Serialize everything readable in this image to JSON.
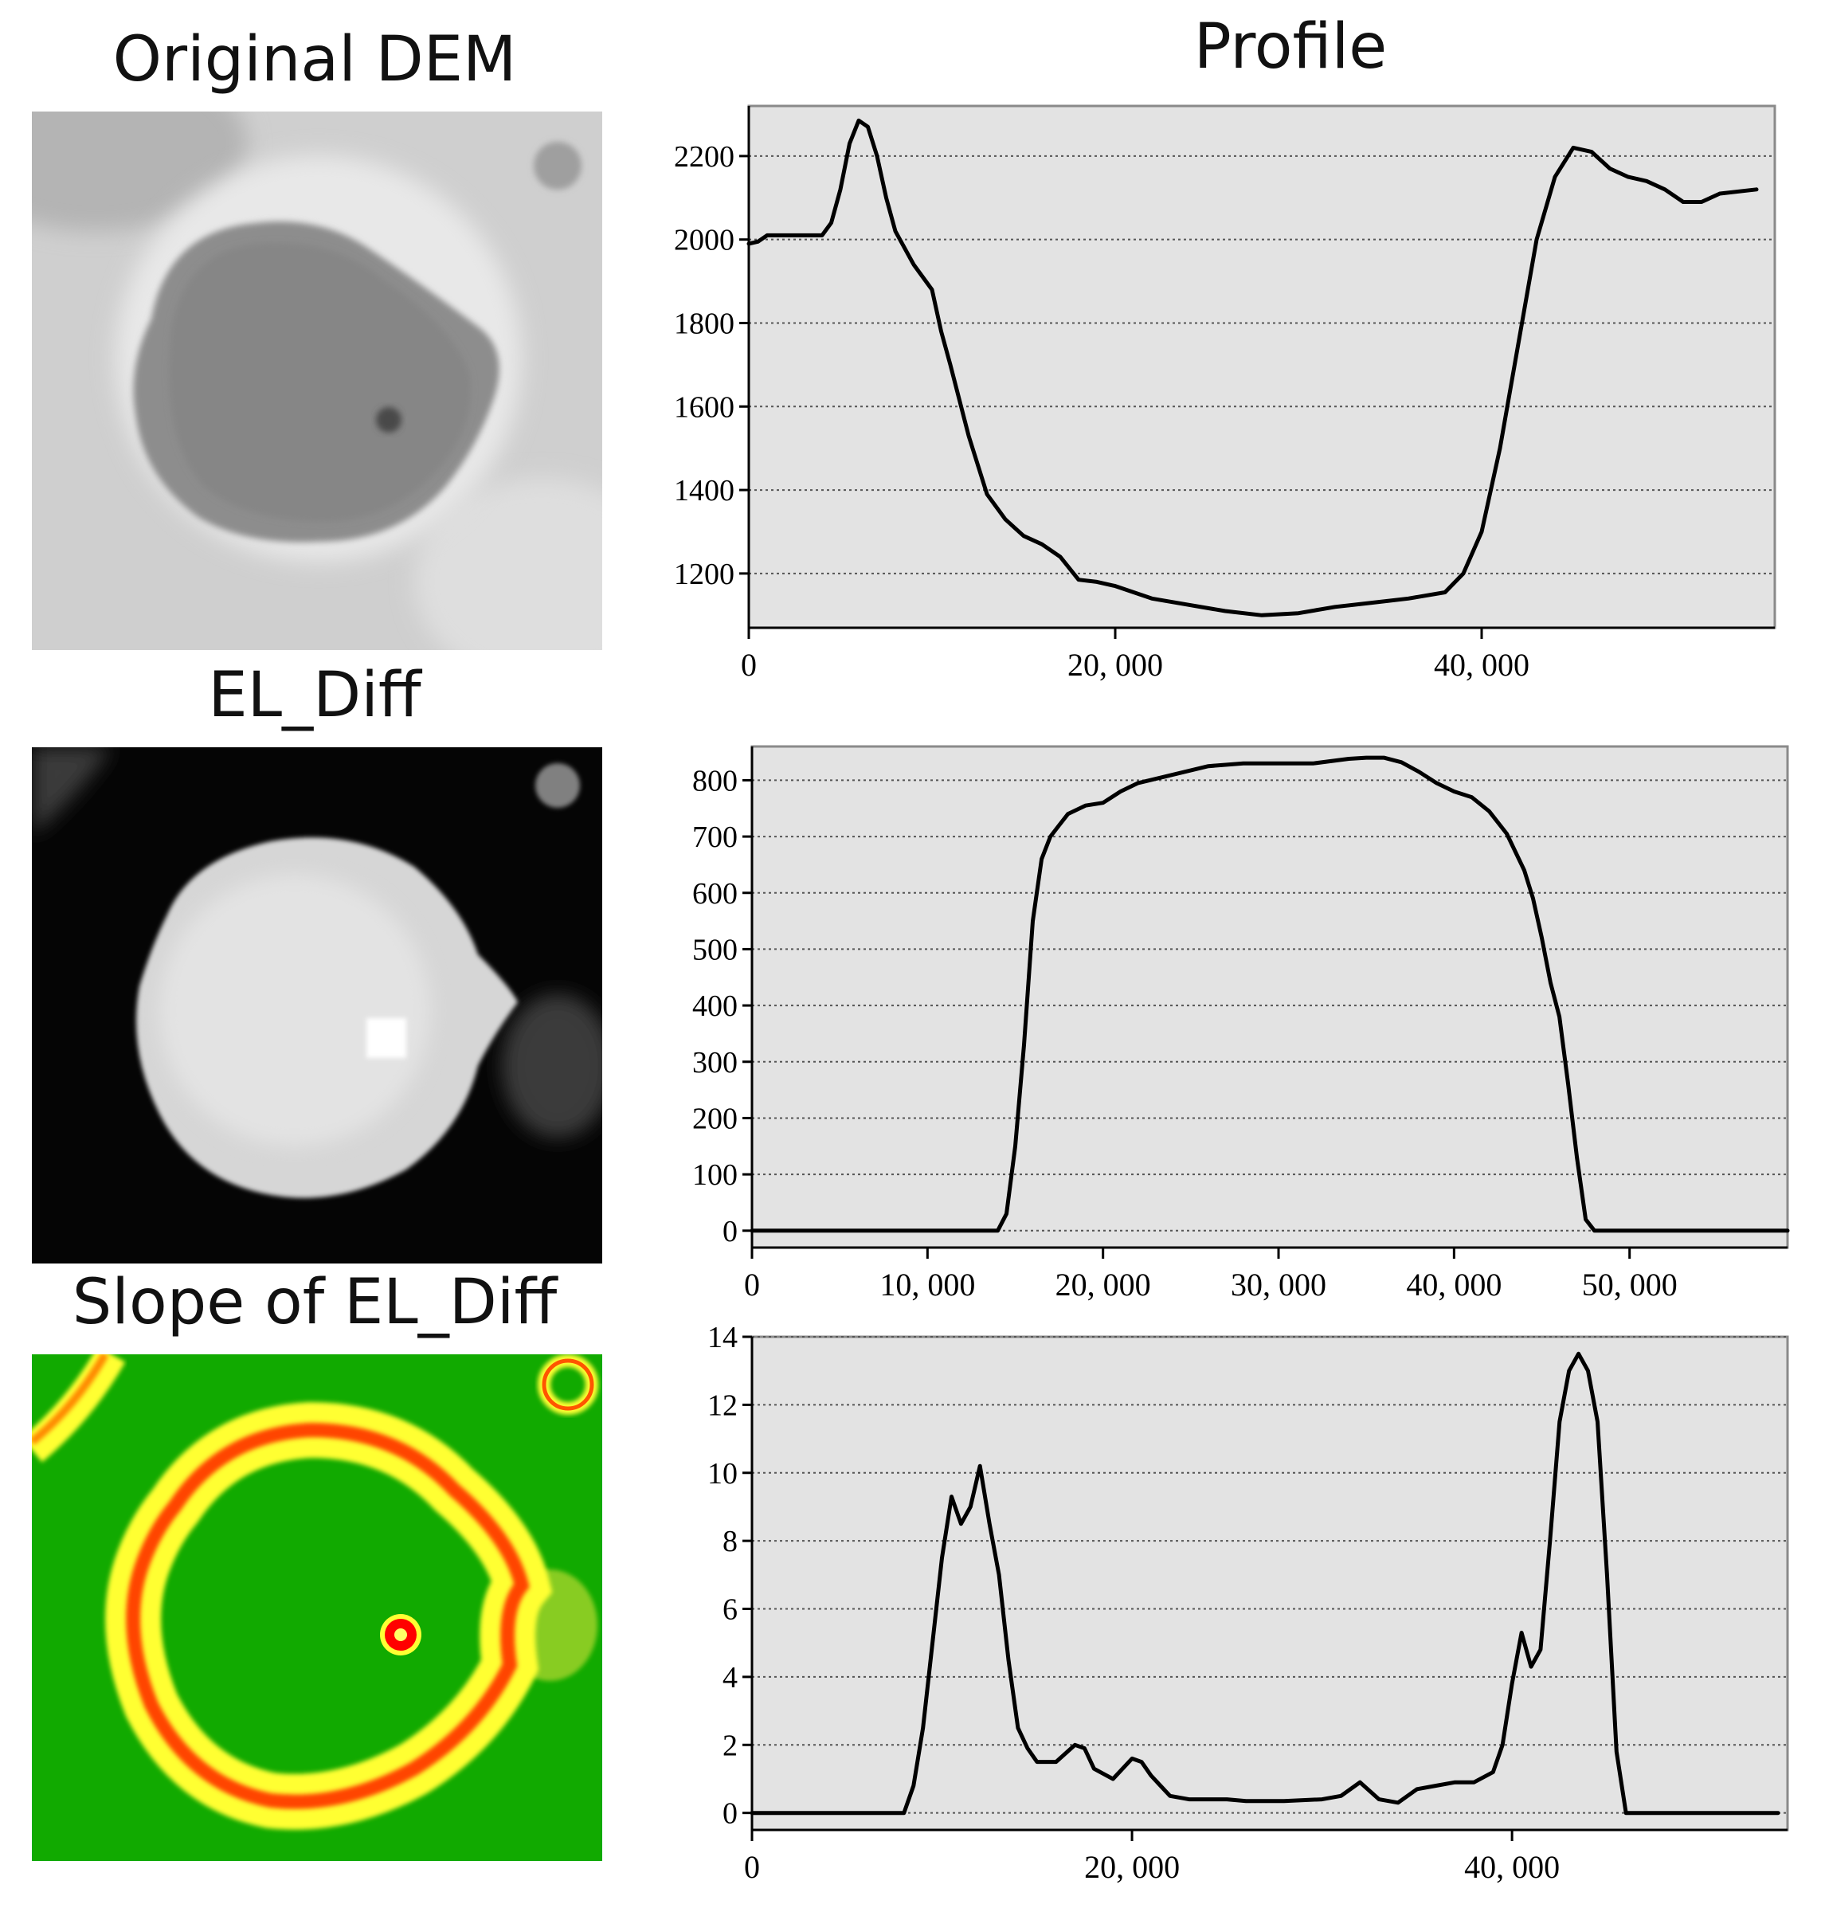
{
  "titles": {
    "dem": "Original DEM",
    "diff": "EL_Diff",
    "slope": "Slope of EL_Diff",
    "profile": "Profile"
  },
  "colors": {
    "plot_bg": "#e3e3e3",
    "line": "#000000",
    "grid": "#555555",
    "slope_low": "#11aa00",
    "slope_mid": "#ffff33",
    "slope_high": "#ff0000"
  },
  "chart_data": [
    {
      "type": "line",
      "title": "",
      "xlabel": "",
      "ylabel": "",
      "xlim": [
        0,
        56000
      ],
      "ylim": [
        1070,
        2320
      ],
      "xticks": [
        0,
        20000,
        40000
      ],
      "xtick_labels": [
        "0",
        "20, 000",
        "40, 000"
      ],
      "yticks": [
        1200,
        1400,
        1600,
        1800,
        2000,
        2200
      ],
      "yticks_labels": [
        "1200",
        "1400",
        "1600",
        "1800",
        "2000",
        "2200"
      ],
      "grid": "horizontal-dotted",
      "series": [
        {
          "x": [
            0,
            500,
            1000,
            4000,
            4500,
            5000,
            5500,
            6000,
            6500,
            7000,
            7500,
            8000,
            9000,
            10000,
            10500,
            11000,
            12000,
            13000,
            14000,
            15000,
            16000,
            17000,
            18000,
            19000,
            20000,
            22000,
            24000,
            26000,
            28000,
            30000,
            32000,
            34000,
            36000,
            38000,
            39000,
            40000,
            41000,
            42000,
            43000,
            44000,
            45000,
            46000,
            47000,
            48000,
            49000,
            50000,
            51000,
            52000,
            53000,
            55000
          ],
          "y": [
            1990,
            1995,
            2010,
            2010,
            2040,
            2120,
            2230,
            2285,
            2270,
            2200,
            2100,
            2020,
            1940,
            1880,
            1780,
            1700,
            1530,
            1390,
            1330,
            1290,
            1270,
            1240,
            1185,
            1180,
            1170,
            1140,
            1125,
            1110,
            1100,
            1105,
            1120,
            1130,
            1140,
            1155,
            1200,
            1300,
            1500,
            1750,
            2000,
            2150,
            2220,
            2210,
            2170,
            2150,
            2140,
            2120,
            2090,
            2090,
            2110,
            2120
          ]
        }
      ]
    },
    {
      "type": "line",
      "title": "",
      "xlabel": "",
      "ylabel": "",
      "xlim": [
        0,
        59000
      ],
      "ylim": [
        -30,
        860
      ],
      "xticks": [
        0,
        10000,
        20000,
        30000,
        40000,
        50000
      ],
      "xtick_labels": [
        "0",
        "10, 000",
        "20, 000",
        "30, 000",
        "40, 000",
        "50, 000"
      ],
      "yticks": [
        0,
        100,
        200,
        300,
        400,
        500,
        600,
        700,
        800
      ],
      "yticks_labels": [
        "0",
        "100",
        "200",
        "300",
        "400",
        "500",
        "600",
        "700",
        "800"
      ],
      "grid": "horizontal-dotted",
      "series": [
        {
          "x": [
            0,
            14000,
            14500,
            15000,
            15500,
            16000,
            16500,
            17000,
            17500,
            18000,
            19000,
            20000,
            21000,
            22000,
            24000,
            26000,
            28000,
            30000,
            32000,
            34000,
            35000,
            36000,
            37000,
            38000,
            39000,
            40000,
            41000,
            42000,
            43000,
            44000,
            44500,
            45000,
            45500,
            46000,
            46500,
            47000,
            47500,
            48000,
            48500,
            50000,
            52000,
            59000
          ],
          "y": [
            0,
            0,
            30,
            150,
            330,
            550,
            660,
            700,
            720,
            740,
            755,
            760,
            780,
            795,
            810,
            825,
            830,
            830,
            830,
            838,
            840,
            840,
            832,
            815,
            795,
            780,
            770,
            745,
            705,
            640,
            590,
            520,
            440,
            380,
            260,
            130,
            20,
            0,
            0,
            0,
            0,
            0
          ]
        }
      ]
    },
    {
      "type": "line",
      "title": "",
      "xlabel": "",
      "ylabel": "",
      "xlim": [
        0,
        54500
      ],
      "ylim": [
        -0.5,
        14
      ],
      "xticks": [
        0,
        20000,
        40000
      ],
      "xtick_labels": [
        "0",
        "20, 000",
        "40, 000"
      ],
      "yticks": [
        0,
        2,
        4,
        6,
        8,
        10,
        12,
        14
      ],
      "yticks_labels": [
        "0",
        "2",
        "4",
        "6",
        "8",
        "10",
        "12",
        "14"
      ],
      "grid": "horizontal-dotted",
      "series": [
        {
          "x": [
            0,
            8000,
            8500,
            9000,
            9500,
            10000,
            10500,
            11000,
            11500,
            12000,
            12500,
            13000,
            13500,
            14000,
            14500,
            15000,
            16000,
            17000,
            17500,
            18000,
            19000,
            20000,
            20500,
            21000,
            21500,
            22000,
            23000,
            24000,
            25000,
            26000,
            28000,
            30000,
            31000,
            32000,
            33000,
            34000,
            35000,
            36000,
            37000,
            38000,
            39000,
            39500,
            40000,
            40500,
            41000,
            41500,
            42000,
            42500,
            43000,
            43500,
            44000,
            44500,
            45000,
            45500,
            46000,
            46500,
            48000,
            54000
          ],
          "y": [
            0,
            0,
            0.8,
            2.5,
            5,
            7.5,
            9.3,
            8.5,
            9,
            10.2,
            8.5,
            7,
            4.5,
            2.5,
            1.9,
            1.5,
            1.5,
            2,
            1.9,
            1.3,
            1,
            1.6,
            1.5,
            1.1,
            0.8,
            0.5,
            0.4,
            0.4,
            0.4,
            0.35,
            0.35,
            0.4,
            0.5,
            0.9,
            0.4,
            0.3,
            0.7,
            0.8,
            0.9,
            0.9,
            1.2,
            2,
            3.8,
            5.3,
            4.3,
            4.8,
            8,
            11.5,
            13,
            13.5,
            13,
            11.5,
            7,
            1.8,
            0,
            0,
            0,
            0
          ]
        }
      ]
    }
  ]
}
